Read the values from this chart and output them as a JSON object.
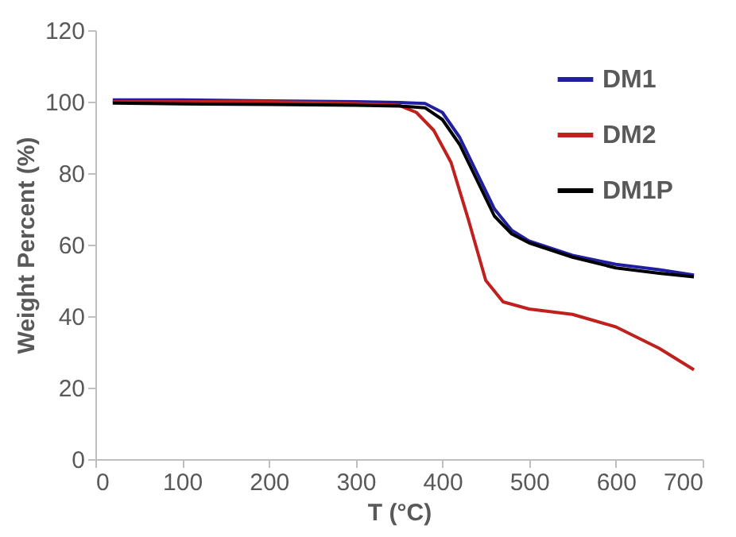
{
  "chart_data": {
    "type": "line",
    "xlabel": "T (°C)",
    "ylabel": "Weight Percent (%)",
    "xlim": [
      0,
      700
    ],
    "xticks": [
      0,
      100,
      200,
      300,
      400,
      500,
      600,
      700
    ],
    "ylim": [
      0,
      120
    ],
    "yticks": [
      0,
      20,
      40,
      60,
      80,
      100,
      120
    ],
    "grid": false,
    "legend": "top right",
    "marker": "none",
    "line_style": "solid",
    "series": [
      {
        "name": "DM1",
        "color": "#1f1fa0",
        "x": [
          20,
          100,
          200,
          300,
          350,
          380,
          400,
          420,
          440,
          460,
          480,
          500,
          550,
          600,
          650,
          690
        ],
        "values": [
          100.5,
          100.5,
          100.2,
          100,
          99.8,
          99.5,
          97,
          90,
          80,
          70,
          64,
          61,
          57,
          54.5,
          53,
          51.5
        ]
      },
      {
        "name": "DM2",
        "color": "#c0201e",
        "x": [
          20,
          100,
          200,
          300,
          350,
          370,
          390,
          410,
          430,
          450,
          470,
          500,
          550,
          600,
          650,
          690
        ],
        "values": [
          100,
          100,
          100,
          99.5,
          99,
          97,
          92,
          83,
          67,
          50,
          44,
          42,
          40.5,
          37,
          31,
          25
        ]
      },
      {
        "name": "DM1P",
        "color": "#000000",
        "x": [
          20,
          100,
          200,
          300,
          350,
          380,
          400,
          420,
          440,
          460,
          480,
          500,
          550,
          600,
          650,
          690
        ],
        "values": [
          99.6,
          99.4,
          99.2,
          99,
          98.8,
          98.3,
          95,
          88,
          78,
          68,
          63,
          60.5,
          56.5,
          53.5,
          52,
          51
        ]
      }
    ]
  }
}
